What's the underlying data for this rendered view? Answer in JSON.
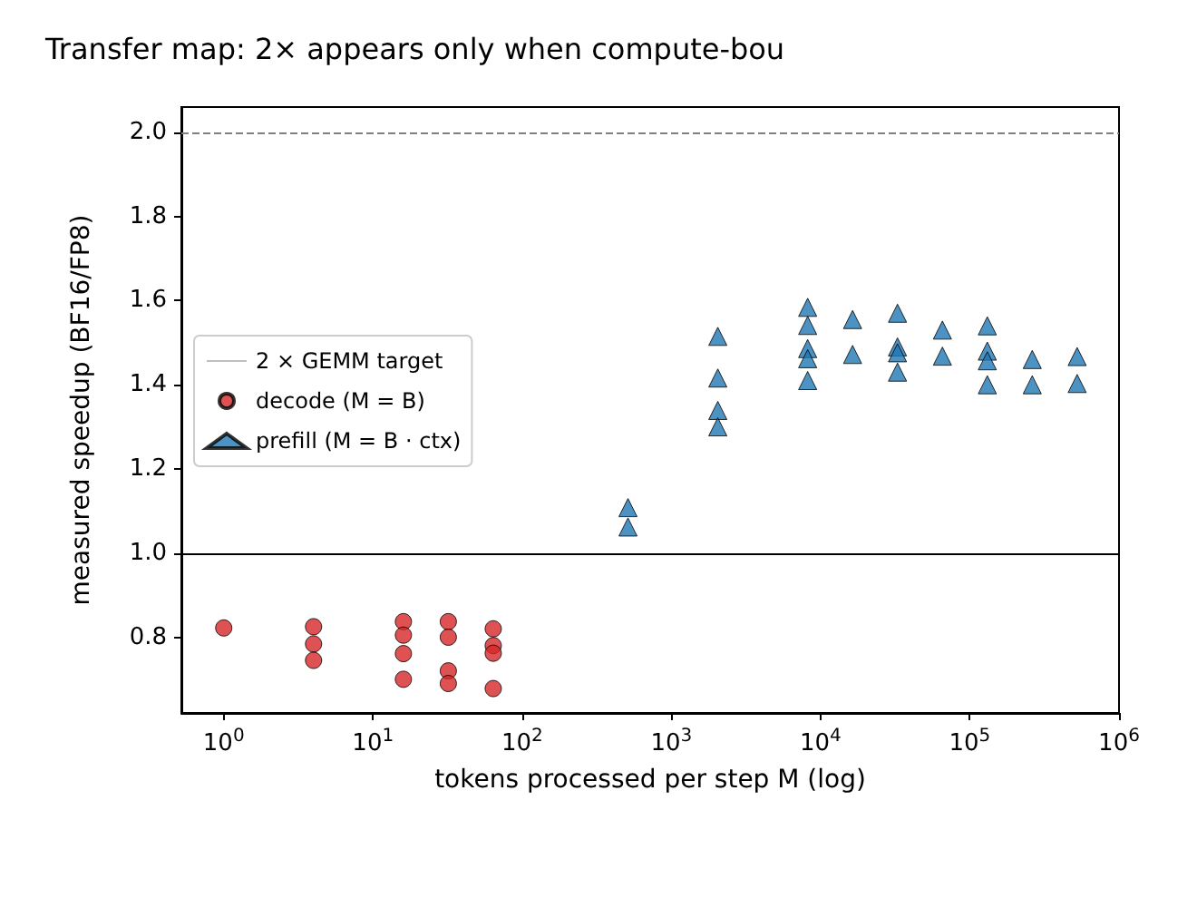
{
  "chart_data": {
    "type": "scatter",
    "title": "Transfer map: 2× appears only when compute-bou",
    "xlabel": "tokens processed per step M (log)",
    "ylabel": "measured speedup (BF16/FP8)",
    "log": "x",
    "xlim": [
      0.52,
      1000000
    ],
    "ylim": [
      0.62,
      2.06
    ],
    "xticks": [
      {
        "value": 1,
        "label": "10$^{0}$"
      },
      {
        "value": 10,
        "label": "10$^{1}$"
      },
      {
        "value": 100,
        "label": "10$^{2}$"
      },
      {
        "value": 1000,
        "label": "10$^{3}$"
      },
      {
        "value": 10000,
        "label": "10$^{4}$"
      },
      {
        "value": 100000,
        "label": "10$^{5}$"
      },
      {
        "value": 1000000,
        "label": "10$^{6}$"
      }
    ],
    "yticks": [
      0.8,
      {
        "value": 1,
        "label": "1.0"
      },
      1.2,
      1.4,
      1.6,
      1.8,
      {
        "value": 2,
        "label": "2.0"
      }
    ],
    "grid": false,
    "legend": "left",
    "ref_lines": [
      {
        "axis": "y",
        "value": 2.0,
        "label": "2 × GEMM target",
        "color": "#808080",
        "line_style": "dashed"
      },
      {
        "axis": "y",
        "value": 1.0,
        "color": "#000000",
        "line_style": "solid"
      }
    ],
    "series": [
      {
        "name": "decode (M = B)",
        "color": "#d62728",
        "marker": "circle",
        "x": [
          1,
          4,
          4,
          4,
          16,
          16,
          16,
          16,
          32,
          32,
          32,
          32,
          64,
          64,
          64,
          64
        ],
        "values": [
          0.822,
          0.825,
          0.784,
          0.745,
          0.837,
          0.805,
          0.761,
          0.7,
          0.837,
          0.8,
          0.72,
          0.69,
          0.82,
          0.78,
          0.762,
          0.678
        ]
      },
      {
        "name": "prefill (M = B · ctx)",
        "color": "#1f77b4",
        "marker": "triangle",
        "x": [
          512,
          512,
          2048,
          2048,
          2048,
          2048,
          8192,
          8192,
          8192,
          8192,
          8192,
          16384,
          16384,
          32768,
          32768,
          32768,
          32768,
          65536,
          65536,
          131072,
          131072,
          131072,
          131072,
          262144,
          262144,
          524288,
          524288
        ],
        "values": [
          1.108,
          1.062,
          1.515,
          1.416,
          1.339,
          1.3,
          1.584,
          1.541,
          1.486,
          1.462,
          1.41,
          1.555,
          1.472,
          1.57,
          1.49,
          1.476,
          1.43,
          1.53,
          1.468,
          1.54,
          1.48,
          1.457,
          1.4,
          1.46,
          1.4,
          1.467,
          1.403
        ]
      }
    ]
  }
}
